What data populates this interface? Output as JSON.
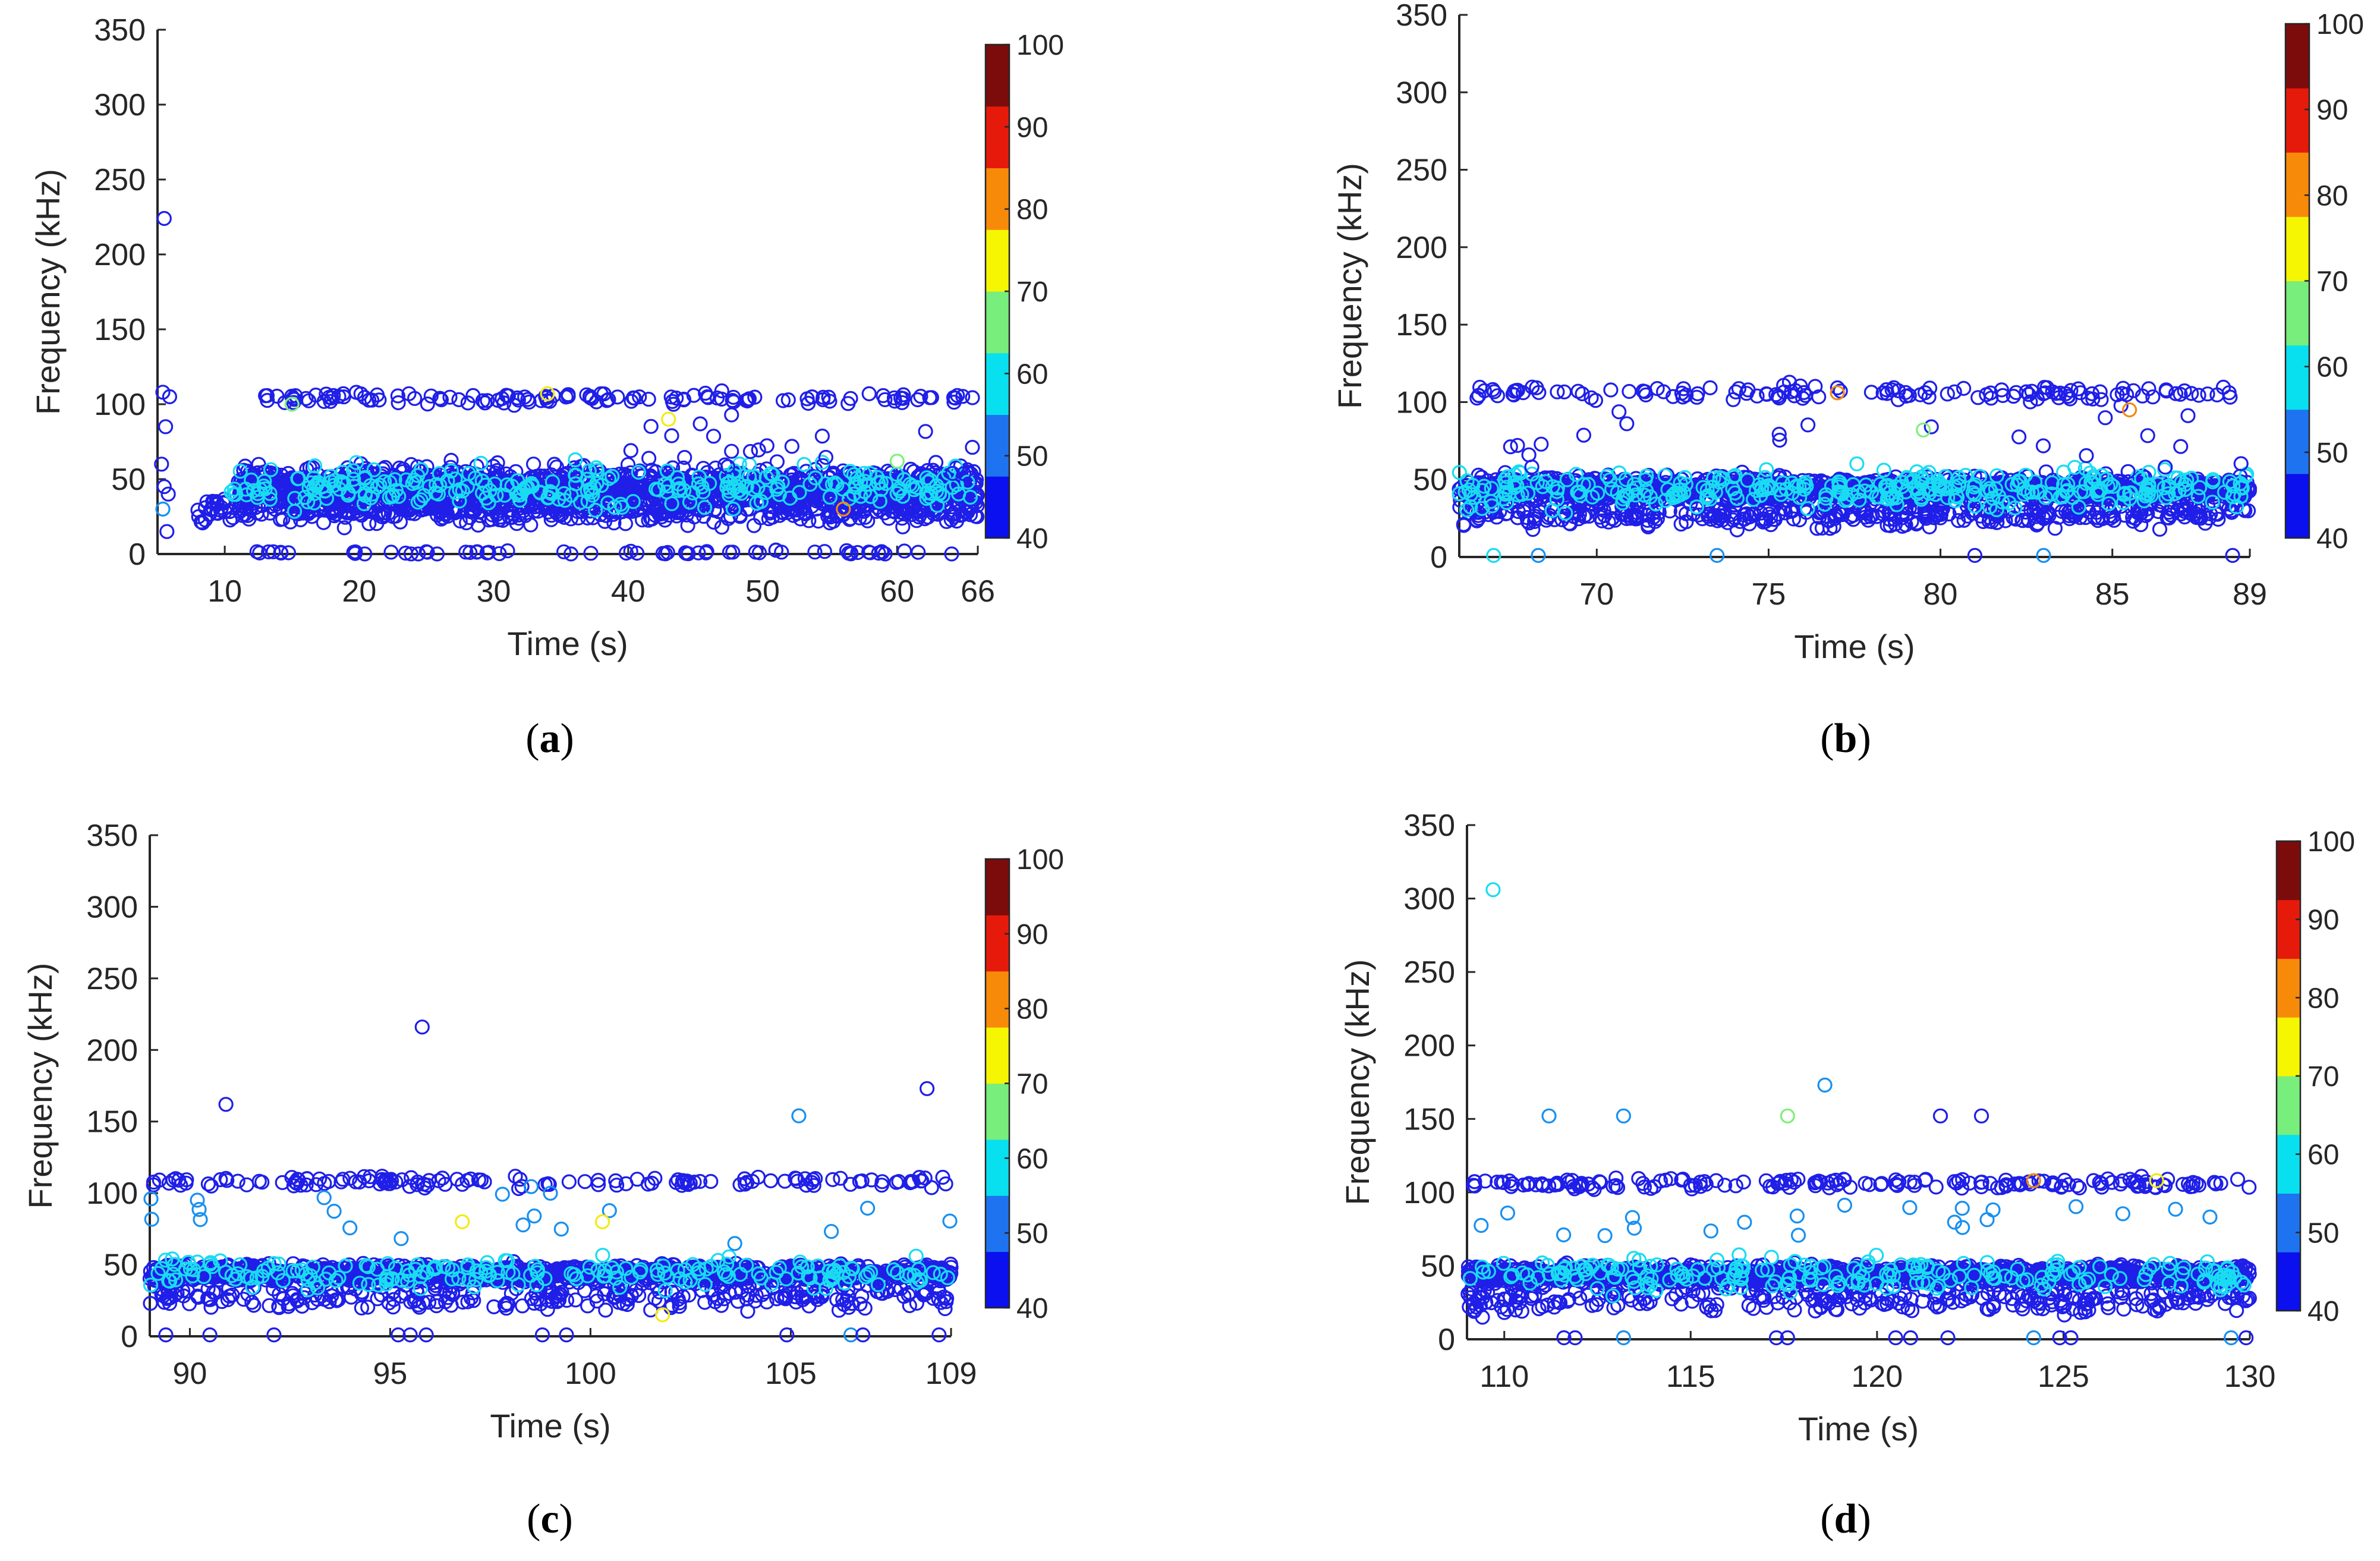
{
  "colormap": {
    "levels": [
      40,
      50,
      60,
      70,
      80,
      90,
      100
    ],
    "colors": [
      "#0a10ee",
      "#1e74f0",
      "#08e0f0",
      "#78ee7c",
      "#f6f602",
      "#f88a0a",
      "#e61a0a",
      "#7c0c0c"
    ],
    "marker_colors": {
      "low": "#1f1fe8",
      "mid": "#1890f0",
      "high": "#19dcf2",
      "green": "#7ef07a",
      "yellow": "#f4ea14",
      "orange": "#f08a14",
      "red": "#e02010"
    }
  },
  "chart_data": [
    {
      "panel": "(a)",
      "type": "scatter",
      "xlabel": "Time (s)",
      "ylabel": "Frequency (kHz)",
      "xlim": [
        5,
        66
      ],
      "ylim": [
        0,
        350
      ],
      "xticks": [
        10,
        20,
        30,
        40,
        50,
        60,
        66
      ],
      "yticks": [
        0,
        50,
        100,
        150,
        200,
        250,
        300,
        350
      ],
      "colorbar": {
        "range": [
          40,
          100
        ],
        "ticks": [
          40,
          50,
          60,
          70,
          80,
          90,
          100
        ]
      },
      "bands": [
        {
          "center": 45,
          "spread": 10,
          "density": 25,
          "x_from": 11,
          "x_to": 66,
          "color": "low"
        },
        {
          "center": 30,
          "spread": 8,
          "density": 10,
          "x_from": 8,
          "x_to": 66,
          "color": "low"
        },
        {
          "center": 104,
          "spread": 3,
          "density": 2.5,
          "x_from": 13,
          "x_to": 66,
          "color": "low"
        },
        {
          "center": 1,
          "spread": 1,
          "density": 1.2,
          "x_from": 12,
          "x_to": 66,
          "color": "low"
        },
        {
          "center": 45,
          "spread": 12,
          "density": 5,
          "x_from": 10,
          "x_to": 66,
          "color": "high"
        },
        {
          "center": 70,
          "spread": 18,
          "density": 0.8,
          "x_from": 40,
          "x_to": 66,
          "color": "low"
        }
      ],
      "points": [
        {
          "x": 5.5,
          "y": 224,
          "c": "low"
        },
        {
          "x": 5.4,
          "y": 108,
          "c": "low"
        },
        {
          "x": 5.9,
          "y": 105,
          "c": "low"
        },
        {
          "x": 5.6,
          "y": 85,
          "c": "low"
        },
        {
          "x": 5.3,
          "y": 60,
          "c": "low"
        },
        {
          "x": 5.5,
          "y": 45,
          "c": "low"
        },
        {
          "x": 5.8,
          "y": 40,
          "c": "low"
        },
        {
          "x": 5.4,
          "y": 30,
          "c": "mid"
        },
        {
          "x": 5.7,
          "y": 15,
          "c": "low"
        },
        {
          "x": 43,
          "y": 90,
          "c": "yellow"
        },
        {
          "x": 15,
          "y": 100,
          "c": "green"
        },
        {
          "x": 60,
          "y": 62,
          "c": "green"
        },
        {
          "x": 34,
          "y": 107,
          "c": "yellow"
        },
        {
          "x": 56,
          "y": 30,
          "c": "orange"
        }
      ]
    },
    {
      "panel": "(b)",
      "type": "scatter",
      "xlabel": "Time (s)",
      "ylabel": "Frequency (kHz)",
      "xlim": [
        66,
        89
      ],
      "ylim": [
        0,
        350
      ],
      "xticks": [
        70,
        75,
        80,
        85,
        89
      ],
      "yticks": [
        0,
        50,
        100,
        150,
        200,
        250,
        300,
        350
      ],
      "colorbar": {
        "range": [
          40,
          100
        ],
        "ticks": [
          40,
          50,
          60,
          70,
          80,
          90,
          100
        ]
      },
      "bands": [
        {
          "center": 44,
          "spread": 6,
          "density": 60,
          "x_from": 66,
          "x_to": 89,
          "color": "low"
        },
        {
          "center": 28,
          "spread": 7,
          "density": 18,
          "x_from": 66,
          "x_to": 89,
          "color": "low"
        },
        {
          "center": 106,
          "spread": 4,
          "density": 6,
          "x_from": 66.5,
          "x_to": 89,
          "color": "low"
        },
        {
          "center": 44,
          "spread": 10,
          "density": 14,
          "x_from": 66,
          "x_to": 89,
          "color": "high"
        },
        {
          "center": 75,
          "spread": 20,
          "density": 1,
          "x_from": 66,
          "x_to": 89,
          "color": "low"
        }
      ],
      "points": [
        {
          "x": 67,
          "y": 1,
          "c": "high"
        },
        {
          "x": 68.3,
          "y": 1,
          "c": "mid"
        },
        {
          "x": 73.5,
          "y": 1,
          "c": "mid"
        },
        {
          "x": 81,
          "y": 1,
          "c": "low"
        },
        {
          "x": 83,
          "y": 1,
          "c": "mid"
        },
        {
          "x": 88.5,
          "y": 1,
          "c": "low"
        },
        {
          "x": 79.5,
          "y": 82,
          "c": "green"
        },
        {
          "x": 85.5,
          "y": 95,
          "c": "orange"
        },
        {
          "x": 77,
          "y": 106,
          "c": "orange"
        }
      ]
    },
    {
      "panel": "(c)",
      "type": "scatter",
      "xlabel": "Time (s)",
      "ylabel": "Frequency (kHz)",
      "xlim": [
        89,
        109
      ],
      "ylim": [
        0,
        350
      ],
      "xticks": [
        90,
        95,
        100,
        105,
        109
      ],
      "yticks": [
        0,
        50,
        100,
        150,
        200,
        250,
        300,
        350
      ],
      "colorbar": {
        "range": [
          40,
          100
        ],
        "ticks": [
          40,
          50,
          60,
          70,
          80,
          90,
          100
        ]
      },
      "bands": [
        {
          "center": 44,
          "spread": 5,
          "density": 60,
          "x_from": 89,
          "x_to": 109,
          "color": "low"
        },
        {
          "center": 28,
          "spread": 8,
          "density": 14,
          "x_from": 89,
          "x_to": 109,
          "color": "low"
        },
        {
          "center": 108,
          "spread": 3,
          "density": 7,
          "x_from": 89,
          "x_to": 109,
          "color": "low"
        },
        {
          "center": 44,
          "spread": 9,
          "density": 10,
          "x_from": 89,
          "x_to": 109,
          "color": "high"
        },
        {
          "center": 85,
          "spread": 15,
          "density": 1,
          "x_from": 89,
          "x_to": 109,
          "color": "mid"
        }
      ],
      "points": [
        {
          "x": 95.8,
          "y": 216,
          "c": "low"
        },
        {
          "x": 90.9,
          "y": 162,
          "c": "low"
        },
        {
          "x": 105.2,
          "y": 154,
          "c": "mid"
        },
        {
          "x": 108.4,
          "y": 173,
          "c": "low"
        },
        {
          "x": 89.4,
          "y": 1,
          "c": "low"
        },
        {
          "x": 90.5,
          "y": 1,
          "c": "low"
        },
        {
          "x": 92.1,
          "y": 1,
          "c": "low"
        },
        {
          "x": 95.2,
          "y": 1,
          "c": "low"
        },
        {
          "x": 95.5,
          "y": 1,
          "c": "low"
        },
        {
          "x": 95.9,
          "y": 1,
          "c": "low"
        },
        {
          "x": 98.8,
          "y": 1,
          "c": "low"
        },
        {
          "x": 99.4,
          "y": 1,
          "c": "low"
        },
        {
          "x": 104.9,
          "y": 1,
          "c": "low"
        },
        {
          "x": 106.5,
          "y": 1,
          "c": "mid"
        },
        {
          "x": 106.8,
          "y": 1,
          "c": "low"
        },
        {
          "x": 108.7,
          "y": 1,
          "c": "low"
        },
        {
          "x": 96.8,
          "y": 80,
          "c": "yellow"
        },
        {
          "x": 100.3,
          "y": 80,
          "c": "yellow"
        },
        {
          "x": 101.8,
          "y": 15,
          "c": "yellow"
        }
      ]
    },
    {
      "panel": "(d)",
      "type": "scatter",
      "xlabel": "Time (s)",
      "ylabel": "Frequency (kHz)",
      "xlim": [
        109,
        130
      ],
      "ylim": [
        0,
        350
      ],
      "xticks": [
        110,
        115,
        120,
        125,
        130
      ],
      "yticks": [
        0,
        50,
        100,
        150,
        200,
        250,
        300,
        350
      ],
      "colorbar": {
        "range": [
          40,
          100
        ],
        "ticks": [
          40,
          50,
          60,
          70,
          80,
          90,
          100
        ]
      },
      "bands": [
        {
          "center": 44,
          "spread": 5,
          "density": 60,
          "x_from": 109,
          "x_to": 130,
          "color": "low"
        },
        {
          "center": 28,
          "spread": 8,
          "density": 14,
          "x_from": 109,
          "x_to": 130,
          "color": "low"
        },
        {
          "center": 106,
          "spread": 3,
          "density": 8,
          "x_from": 109,
          "x_to": 130,
          "color": "low"
        },
        {
          "center": 44,
          "spread": 9,
          "density": 10,
          "x_from": 109,
          "x_to": 130,
          "color": "high"
        },
        {
          "center": 85,
          "spread": 15,
          "density": 1,
          "x_from": 109,
          "x_to": 130,
          "color": "mid"
        }
      ],
      "points": [
        {
          "x": 109.7,
          "y": 306,
          "c": "high"
        },
        {
          "x": 111.2,
          "y": 152,
          "c": "mid"
        },
        {
          "x": 113.2,
          "y": 152,
          "c": "mid"
        },
        {
          "x": 117.6,
          "y": 152,
          "c": "green"
        },
        {
          "x": 118.6,
          "y": 173,
          "c": "mid"
        },
        {
          "x": 121.7,
          "y": 152,
          "c": "low"
        },
        {
          "x": 122.8,
          "y": 152,
          "c": "low"
        },
        {
          "x": 111.6,
          "y": 1,
          "c": "low"
        },
        {
          "x": 111.9,
          "y": 1,
          "c": "low"
        },
        {
          "x": 113.2,
          "y": 1,
          "c": "mid"
        },
        {
          "x": 117.3,
          "y": 1,
          "c": "low"
        },
        {
          "x": 117.6,
          "y": 1,
          "c": "low"
        },
        {
          "x": 120.5,
          "y": 1,
          "c": "low"
        },
        {
          "x": 120.9,
          "y": 1,
          "c": "low"
        },
        {
          "x": 121.9,
          "y": 1,
          "c": "low"
        },
        {
          "x": 124.2,
          "y": 1,
          "c": "mid"
        },
        {
          "x": 124.9,
          "y": 1,
          "c": "low"
        },
        {
          "x": 125.2,
          "y": 1,
          "c": "low"
        },
        {
          "x": 129.5,
          "y": 1,
          "c": "mid"
        },
        {
          "x": 129.9,
          "y": 1,
          "c": "low"
        },
        {
          "x": 127.5,
          "y": 108,
          "c": "yellow"
        },
        {
          "x": 124.2,
          "y": 108,
          "c": "orange"
        }
      ]
    }
  ]
}
